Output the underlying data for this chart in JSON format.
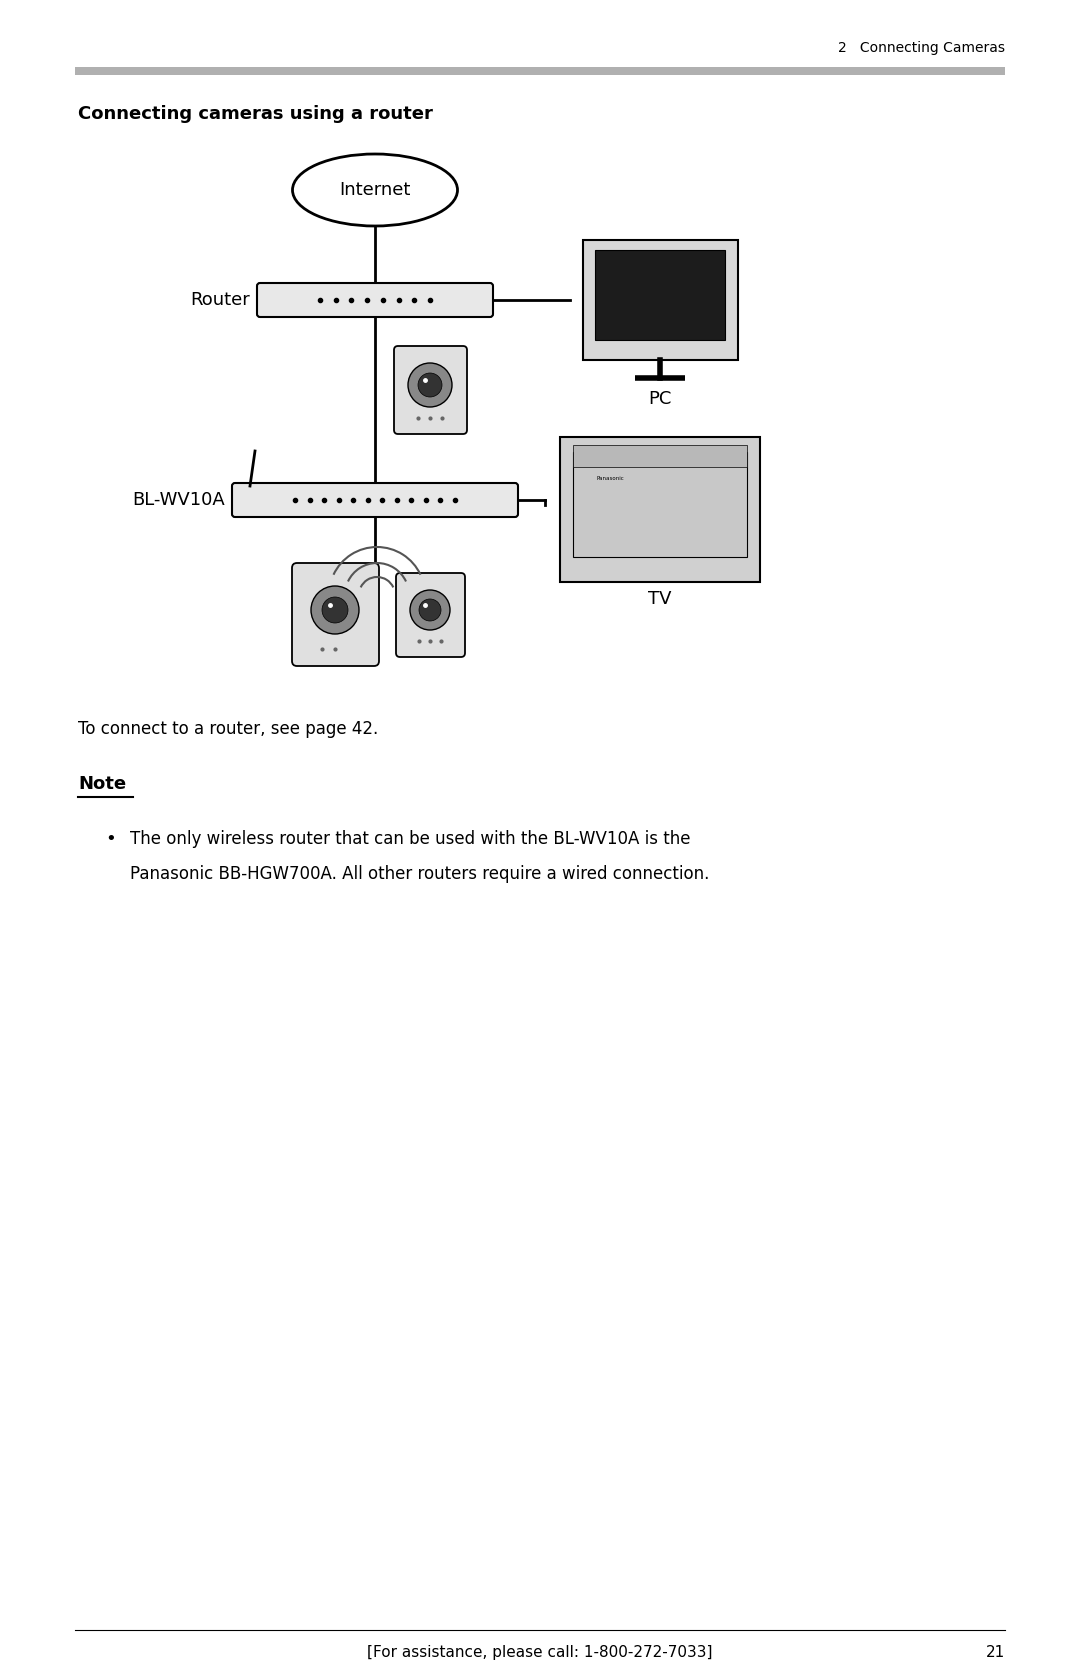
{
  "bg_color": "#ffffff",
  "header_line_color": "#b0b0b0",
  "header_text": "2   Connecting Cameras",
  "header_text_size": 10,
  "section_title": "Connecting cameras using a router",
  "section_title_size": 12,
  "footer_text": "[For assistance, please call: 1-800-272-7033]",
  "footer_page": "21",
  "footer_size": 10,
  "note_label": "Note",
  "note_line1": "The only wireless router that can be used with the BL-WV10A is the",
  "note_line2": "Panasonic BB-HGW700A. All other routers require a wired connection.",
  "caption_text": "To connect to a router, see page 42.",
  "internet_label": "Internet",
  "router_label": "Router",
  "blwv10a_label": "BL-WV10A",
  "pc_label": "PC",
  "tv_label": "TV"
}
